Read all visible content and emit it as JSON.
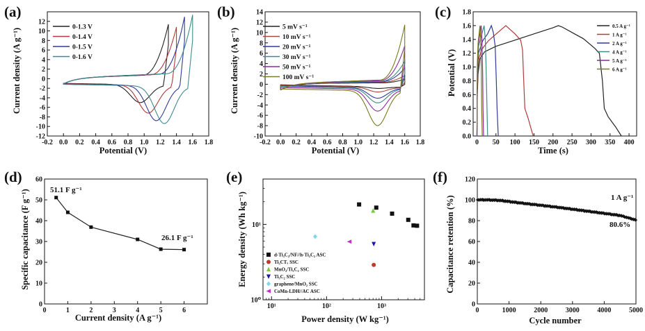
{
  "figure": {
    "panels": [
      "(a)",
      "(b)",
      "(c)",
      "(d)",
      "(e)",
      "(f)"
    ]
  },
  "chart_data": [
    {
      "panel": "(a)",
      "type": "line",
      "xlabel": "Potential (V)",
      "ylabel": "Current density (A g⁻¹)",
      "xlim": [
        -0.2,
        1.8
      ],
      "ylim": [
        -12,
        14
      ],
      "xticks": [
        "-0.2",
        "0.0",
        "0.2",
        "0.4",
        "0.6",
        "0.8",
        "1.0",
        "1.2",
        "1.4",
        "1.6",
        "1.8"
      ],
      "yticks": [
        "-12",
        "-10",
        "-8",
        "-6",
        "-4",
        "-2",
        "0",
        "2",
        "4",
        "6",
        "8",
        "10",
        "12"
      ],
      "legend": "top-left",
      "color_mode": "tail",
      "series": [
        {
          "name": "0-1.3 V",
          "color": "#222222",
          "vmax": 1.3,
          "ipk": 10.5,
          "ic": -5.0,
          "cat": -1.4,
          "an": 1.3
        },
        {
          "name": "0-1.4 V",
          "color": "#b23a3a",
          "vmax": 1.4,
          "ipk": 9.8,
          "ic": -7.2,
          "cat": -1.5,
          "an": 1.4
        },
        {
          "name": "0-1.5 V",
          "color": "#2f3a9a",
          "vmax": 1.5,
          "ipk": 11.8,
          "ic": -8.8,
          "cat": -1.6,
          "an": 1.5
        },
        {
          "name": "0-1.6 V",
          "color": "#3f8a8a",
          "vmax": 1.6,
          "ipk": 12.1,
          "ic": -9.4,
          "cat": -1.7,
          "an": 1.6
        }
      ]
    },
    {
      "panel": "(b)",
      "type": "line",
      "xlabel": "Potential (V)",
      "ylabel": "Current density (A g⁻¹)",
      "xlim": [
        -0.2,
        1.8
      ],
      "ylim": [
        -10,
        14
      ],
      "xticks": [
        "-0.2",
        "0.0",
        "0.2",
        "0.4",
        "0.6",
        "0.8",
        "1.0",
        "1.2",
        "1.4",
        "1.6",
        "1.8"
      ],
      "yticks": [
        "-10",
        "-8",
        "-6",
        "-4",
        "-2",
        "0",
        "2",
        "4",
        "6",
        "8",
        "10",
        "12",
        "14"
      ],
      "legend": "top-left",
      "color_mode": "full",
      "series": [
        {
          "name": "5 mV s⁻¹",
          "color": "#222222",
          "vmax": 1.6,
          "ipk": 0.7,
          "ic": -0.8,
          "cat": -0.15,
          "an": 0.2
        },
        {
          "name": "10 mV s⁻¹",
          "color": "#a84a3a",
          "vmax": 1.6,
          "ipk": 1.3,
          "ic": -1.5,
          "cat": -0.25,
          "an": 0.35
        },
        {
          "name": "20 mV s⁻¹",
          "color": "#2f3a9a",
          "vmax": 1.6,
          "ipk": 2.6,
          "ic": -2.7,
          "cat": -0.45,
          "an": 0.55
        },
        {
          "name": "30 mV s⁻¹",
          "color": "#3f8a8a",
          "vmax": 1.6,
          "ipk": 3.8,
          "ic": -3.6,
          "cat": -0.6,
          "an": 0.7
        },
        {
          "name": "50 mV s⁻¹",
          "color": "#8a2a9a",
          "vmax": 1.6,
          "ipk": 6.6,
          "ic": -5.2,
          "cat": -0.9,
          "an": 0.95
        },
        {
          "name": "100 mV s⁻¹",
          "color": "#7a7a20",
          "vmax": 1.6,
          "ipk": 10.5,
          "ic": -8.0,
          "cat": -1.3,
          "an": 1.2
        }
      ]
    },
    {
      "panel": "(c)",
      "type": "line",
      "xlabel": "Time (s)",
      "ylabel": "Potential (V)",
      "xlim": [
        -10,
        420
      ],
      "ylim": [
        0,
        1.8
      ],
      "xticks": [
        "0",
        "50",
        "100",
        "150",
        "200",
        "250",
        "300",
        "350",
        "400"
      ],
      "yticks": [
        "0.0",
        "0.2",
        "0.4",
        "0.6",
        "0.8",
        "1.0",
        "1.2",
        "1.4",
        "1.6",
        "1.8"
      ],
      "legend": "top-right",
      "series": [
        {
          "name": "0.5 A g⁻¹",
          "color": "#222222",
          "points": [
            [
              0,
              0
            ],
            [
              1,
              0.6
            ],
            [
              3,
              0.9
            ],
            [
              8,
              1.12
            ],
            [
              20,
              1.22
            ],
            [
              50,
              1.3
            ],
            [
              100,
              1.39
            ],
            [
              150,
              1.48
            ],
            [
              200,
              1.57
            ],
            [
              214,
              1.6
            ],
            [
              224,
              1.58
            ],
            [
              250,
              1.5
            ],
            [
              280,
              1.41
            ],
            [
              310,
              1.27
            ],
            [
              322,
              1.2
            ],
            [
              330,
              0.8
            ],
            [
              335,
              0.4
            ],
            [
              345,
              0.28
            ],
            [
              365,
              0.13
            ],
            [
              380,
              0.0
            ]
          ]
        },
        {
          "name": "1 A g⁻¹",
          "color": "#b23a3a",
          "points": [
            [
              0,
              0
            ],
            [
              1,
              0.7
            ],
            [
              4,
              1.1
            ],
            [
              12,
              1.25
            ],
            [
              30,
              1.38
            ],
            [
              55,
              1.5
            ],
            [
              76,
              1.6
            ],
            [
              82,
              1.57
            ],
            [
              100,
              1.48
            ],
            [
              115,
              1.39
            ],
            [
              120,
              1.25
            ],
            [
              123,
              0.8
            ],
            [
              126,
              0.4
            ],
            [
              135,
              0.25
            ],
            [
              148,
              0.0
            ]
          ]
        },
        {
          "name": "2 A g⁻¹",
          "color": "#2f3a9a",
          "points": [
            [
              0,
              0
            ],
            [
              1,
              0.8
            ],
            [
              4,
              1.2
            ],
            [
              15,
              1.38
            ],
            [
              28,
              1.48
            ],
            [
              38,
              1.6
            ],
            [
              43,
              1.5
            ],
            [
              48,
              1.3
            ],
            [
              51,
              0.8
            ],
            [
              53,
              0.4
            ],
            [
              56,
              0.0
            ]
          ]
        },
        {
          "name": "4 A g⁻¹",
          "color": "#3f8a8a",
          "points": [
            [
              0,
              0
            ],
            [
              1,
              0.9
            ],
            [
              4,
              1.3
            ],
            [
              14,
              1.5
            ],
            [
              19,
              1.6
            ],
            [
              22,
              1.4
            ],
            [
              24,
              1.0
            ],
            [
              26,
              0.5
            ],
            [
              28,
              0.0
            ]
          ]
        },
        {
          "name": "5 A g⁻¹",
          "color": "#8a2a9a",
          "points": [
            [
              0,
              0
            ],
            [
              1,
              1.0
            ],
            [
              4,
              1.35
            ],
            [
              11,
              1.6
            ],
            [
              13,
              1.4
            ],
            [
              15,
              0.9
            ],
            [
              16,
              0.4
            ],
            [
              17.5,
              0.0
            ]
          ]
        },
        {
          "name": "6 A g⁻¹",
          "color": "#7a7a20",
          "points": [
            [
              0,
              0
            ],
            [
              1,
              1.05
            ],
            [
              3,
              1.35
            ],
            [
              8,
              1.6
            ],
            [
              10,
              1.4
            ],
            [
              11.5,
              0.9
            ],
            [
              12.5,
              0.4
            ],
            [
              14,
              0.0
            ]
          ]
        }
      ]
    },
    {
      "panel": "(d)",
      "type": "line",
      "xlabel": "Current density (A g⁻¹)",
      "ylabel": "Specific capacitance (F g⁻¹)",
      "xlim": [
        0,
        7
      ],
      "ylim": [
        0,
        60
      ],
      "xticks": [
        "0",
        "1",
        "2",
        "3",
        "4",
        "5",
        "6"
      ],
      "yticks": [
        "0",
        "10",
        "20",
        "30",
        "40",
        "50",
        "60"
      ],
      "x": [
        0.5,
        1,
        2,
        4,
        5,
        6
      ],
      "y": [
        51.1,
        44.0,
        36.9,
        31.0,
        26.3,
        26.1
      ],
      "annotations": [
        "51.1 F g⁻¹",
        "26.1 F g⁻¹"
      ]
    },
    {
      "panel": "(e)",
      "type": "scatter",
      "scale": "log",
      "xlabel": "Power density (W kg⁻¹)",
      "ylabel": "Energy density (Wh kg⁻¹)",
      "xlim": [
        7,
        6000
      ],
      "ylim": [
        1,
        40
      ],
      "xticks": [
        "10¹",
        "10²",
        "10³"
      ],
      "yticks": [
        "10⁰",
        "10¹"
      ],
      "legend": "left",
      "series": [
        {
          "name": "d-Ti₃C₂/NF//h-Ti₃C₂ ASC",
          "color": "#111111",
          "marker": "square",
          "points": [
            [
              390,
              18.4
            ],
            [
              800,
              16.7
            ],
            [
              1550,
              13.9
            ],
            [
              3050,
              11.5
            ],
            [
              3800,
              9.7
            ],
            [
              4400,
              9.6
            ]
          ]
        },
        {
          "name": "Ti₃CTₓ SSC",
          "color": "#c0392b",
          "marker": "circle",
          "points": [
            [
              720,
              2.9
            ]
          ]
        },
        {
          "name": "MnO₂/Ti₃C₂ SSC",
          "color": "#7ac943",
          "marker": "triangle-up",
          "points": [
            [
              700,
              15.2
            ]
          ]
        },
        {
          "name": "Ti₃C₂ SSC",
          "color": "#1a1aa0",
          "marker": "triangle-down",
          "points": [
            [
              720,
              5.5
            ]
          ]
        },
        {
          "name": "graphene/MnO₂ SSC",
          "color": "#7fd8e8",
          "marker": "diamond",
          "points": [
            [
              62,
              6.9
            ]
          ]
        },
        {
          "name": "CoMn-LDH//AC ASC",
          "color": "#c032c0",
          "marker": "triangle-left",
          "points": [
            [
              260,
              5.9
            ]
          ]
        }
      ]
    },
    {
      "panel": "(f)",
      "type": "line",
      "xlabel": "Cycle number",
      "ylabel": "Capacitance retention (%)",
      "xlim": [
        0,
        5000
      ],
      "ylim": [
        0,
        120
      ],
      "xticks": [
        "0",
        "1000",
        "2000",
        "3000",
        "4000",
        "5000"
      ],
      "yticks": [
        "0",
        "20",
        "40",
        "60",
        "80",
        "100",
        "120"
      ],
      "x": [
        0,
        300,
        700,
        1500,
        2500,
        3500,
        4500,
        5000
      ],
      "y": [
        100,
        100,
        99.5,
        96.5,
        93.0,
        89.0,
        85.0,
        80.6
      ],
      "annotations": [
        "1 A g⁻¹",
        "80.6%"
      ]
    }
  ]
}
